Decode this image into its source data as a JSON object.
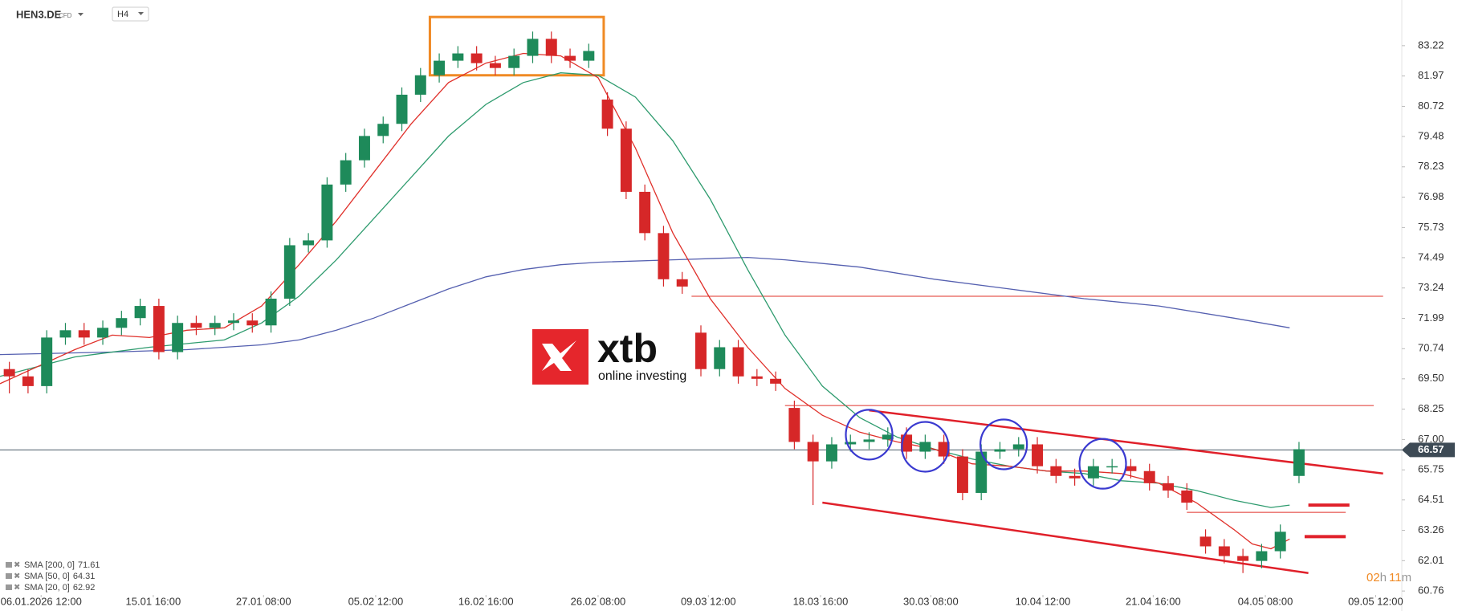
{
  "chart_data": {
    "type": "candlestick",
    "symbol": "HEN3.DE",
    "instrument": "CFD",
    "timeframe": "H4",
    "up_color": "#1e8a5a",
    "down_color": "#d62728",
    "open": [
      69.9,
      69.6,
      69.2,
      71.2,
      71.5,
      71.2,
      71.6,
      72.0,
      72.5,
      70.6,
      71.8,
      71.6,
      71.8,
      71.9,
      71.7,
      72.8,
      75.0,
      75.2,
      77.5,
      78.5,
      79.5,
      80.0,
      81.2,
      82.0,
      82.6,
      82.9,
      82.5,
      82.3,
      82.8,
      83.5,
      82.8,
      82.6,
      81.0,
      79.8,
      77.2,
      75.5,
      73.6,
      71.4,
      69.9,
      70.8,
      69.6,
      69.5,
      68.3,
      66.9,
      66.1,
      66.8,
      66.9,
      67.0,
      67.2,
      66.5,
      66.9,
      66.3,
      64.8,
      66.5,
      66.6,
      66.8,
      65.9,
      65.5,
      65.4,
      65.9,
      65.9,
      65.7,
      65.2,
      64.9,
      63.0,
      62.6,
      62.2,
      62.0,
      62.4,
      65.5
    ],
    "high": [
      70.2,
      69.9,
      71.5,
      71.8,
      71.8,
      71.9,
      72.3,
      72.8,
      72.8,
      72.1,
      72.1,
      72.1,
      72.2,
      72.2,
      73.1,
      75.3,
      75.5,
      77.8,
      78.8,
      79.8,
      80.3,
      81.5,
      82.3,
      82.9,
      83.2,
      83.2,
      82.8,
      83.1,
      83.8,
      83.8,
      83.1,
      83.3,
      81.3,
      80.1,
      77.5,
      75.8,
      73.9,
      71.7,
      71.1,
      71.1,
      69.9,
      69.8,
      68.6,
      67.2,
      67.1,
      67.2,
      67.3,
      67.5,
      67.5,
      67.2,
      67.2,
      66.6,
      66.8,
      66.9,
      67.1,
      67.1,
      66.2,
      65.8,
      66.2,
      66.2,
      66.2,
      66.0,
      65.5,
      65.2,
      63.3,
      62.9,
      62.5,
      62.7,
      63.5,
      66.9
    ],
    "low": [
      68.9,
      68.9,
      68.9,
      70.9,
      70.9,
      70.9,
      71.3,
      71.7,
      70.3,
      70.3,
      71.3,
      71.3,
      71.5,
      71.4,
      71.4,
      72.5,
      74.7,
      74.9,
      77.2,
      78.2,
      79.2,
      79.7,
      80.9,
      81.7,
      82.3,
      82.2,
      82.0,
      82.0,
      82.5,
      82.5,
      82.3,
      82.3,
      79.5,
      76.9,
      75.2,
      73.3,
      73.0,
      69.6,
      69.6,
      69.3,
      69.2,
      69.0,
      66.6,
      64.3,
      65.8,
      66.5,
      66.6,
      66.7,
      66.2,
      66.2,
      66.0,
      64.5,
      64.5,
      66.2,
      66.3,
      65.6,
      65.2,
      65.1,
      65.1,
      65.6,
      65.4,
      64.9,
      64.6,
      64.1,
      62.3,
      61.9,
      61.5,
      61.7,
      62.1,
      65.2
    ],
    "close": [
      69.6,
      69.2,
      71.2,
      71.5,
      71.2,
      71.6,
      72.0,
      72.5,
      70.6,
      71.8,
      71.6,
      71.8,
      71.9,
      71.7,
      72.8,
      75.0,
      75.2,
      77.5,
      78.5,
      79.5,
      80.0,
      81.2,
      82.0,
      82.6,
      82.9,
      82.5,
      82.3,
      82.8,
      83.5,
      82.8,
      82.6,
      83.0,
      79.8,
      77.2,
      75.5,
      73.6,
      73.3,
      69.9,
      70.8,
      69.6,
      69.5,
      69.3,
      66.9,
      66.1,
      66.8,
      66.9,
      67.0,
      67.2,
      66.5,
      66.9,
      66.3,
      64.8,
      66.5,
      66.6,
      66.8,
      65.9,
      65.5,
      65.4,
      65.9,
      65.9,
      65.7,
      65.2,
      64.9,
      64.4,
      62.6,
      62.2,
      62.0,
      62.4,
      63.2,
      66.6
    ],
    "series": [
      {
        "name": "SMA [200, 0]",
        "last_value": 71.61,
        "color": "#5560b0",
        "x": [
          0,
          6,
          10,
          14,
          16,
          18,
          20,
          22,
          24,
          26,
          28,
          30,
          32,
          36,
          40,
          42,
          46,
          50,
          54,
          58,
          62,
          66,
          69
        ],
        "values": [
          70.5,
          70.6,
          70.7,
          70.9,
          71.1,
          71.5,
          72.0,
          72.6,
          73.2,
          73.7,
          74.0,
          74.2,
          74.3,
          74.4,
          74.5,
          74.4,
          74.1,
          73.6,
          73.2,
          72.8,
          72.5,
          72.0,
          71.6
        ]
      },
      {
        "name": "SMA [50, 0]",
        "last_value": 64.31,
        "color": "#2e9b6e",
        "x": [
          0,
          4,
          8,
          12,
          14,
          16,
          18,
          20,
          22,
          24,
          26,
          28,
          30,
          32,
          34,
          36,
          38,
          40,
          42,
          44,
          46,
          48,
          50,
          52,
          54,
          56,
          58,
          60,
          62,
          64,
          66,
          68,
          69
        ],
        "values": [
          69.6,
          70.4,
          70.8,
          71.1,
          71.8,
          72.9,
          74.4,
          76.1,
          77.8,
          79.5,
          80.8,
          81.7,
          82.1,
          82.0,
          81.1,
          79.3,
          76.9,
          74.0,
          71.3,
          69.2,
          67.9,
          67.1,
          66.6,
          66.2,
          65.9,
          65.7,
          65.6,
          65.3,
          65.2,
          64.9,
          64.5,
          64.2,
          64.3
        ]
      },
      {
        "name": "SMA [20, 0]",
        "last_value": 62.92,
        "color": "#e0302a",
        "x": [
          0,
          2,
          4,
          6,
          8,
          10,
          12,
          14,
          16,
          18,
          20,
          22,
          24,
          26,
          28,
          30,
          32,
          34,
          36,
          38,
          40,
          42,
          44,
          46,
          48,
          50,
          52,
          54,
          56,
          58,
          60,
          62,
          64,
          66,
          67,
          68,
          69
        ],
        "values": [
          69.3,
          70.0,
          70.7,
          71.3,
          71.2,
          71.5,
          71.6,
          72.5,
          74.2,
          76.0,
          78.0,
          80.0,
          81.7,
          82.5,
          82.9,
          82.8,
          81.9,
          79.0,
          75.5,
          72.8,
          70.8,
          69.1,
          68.0,
          67.3,
          66.9,
          66.6,
          66.0,
          65.9,
          65.7,
          65.7,
          65.6,
          65.2,
          64.4,
          63.3,
          62.7,
          62.5,
          62.9
        ]
      }
    ],
    "last_price": 66.57,
    "ylim": [
      60.5,
      85.1
    ],
    "yticks": [
      83.22,
      81.97,
      80.72,
      79.48,
      78.23,
      76.98,
      75.73,
      74.49,
      73.24,
      71.99,
      70.74,
      {
        "value": 69.5,
        "label": "69.50"
      },
      68.25,
      {
        "value": 67,
        "label": "67.00"
      },
      65.75,
      64.51,
      63.26,
      62.01,
      60.76
    ],
    "xlim": [
      0,
      75
    ],
    "xticks": [
      {
        "value": 2.2,
        "label": "06.01.2026 12:00"
      },
      {
        "value": 8.2,
        "label": "15.01 16:00"
      },
      {
        "value": 14.1,
        "label": "27.01 08:00"
      },
      {
        "value": 20.1,
        "label": "05.02 12:00"
      },
      {
        "value": 26.0,
        "label": "16.02 16:00"
      },
      {
        "value": 32.0,
        "label": "26.02 08:00"
      },
      {
        "value": 37.9,
        "label": "09.03 12:00"
      },
      {
        "value": 43.9,
        "label": "18.03 16:00"
      },
      {
        "value": 49.8,
        "label": "30.03 08:00"
      },
      {
        "value": 55.8,
        "label": "10.04 12:00"
      },
      {
        "value": 61.7,
        "label": "21.04 16:00"
      },
      {
        "value": 67.7,
        "label": "04.05 08:00"
      },
      {
        "value": 73.6,
        "label": "09.05 12:00"
      }
    ],
    "lines": [
      {
        "x": [
          37,
          74
        ],
        "y": [
          72.9,
          72.9
        ],
        "color": "#e0302a",
        "width": 1
      },
      {
        "x": [
          42,
          73.5
        ],
        "y": [
          68.4,
          68.4
        ],
        "color": "#e0302a",
        "width": 1
      },
      {
        "x": [
          63.5,
          72
        ],
        "y": [
          64.0,
          64.0
        ],
        "color": "#e0302a",
        "width": 1
      },
      {
        "x": [
          46.5,
          74
        ],
        "y": [
          68.2,
          65.6
        ],
        "color": "#e0202a",
        "width": 2.5
      },
      {
        "x": [
          44,
          70
        ],
        "y": [
          64.4,
          61.5
        ],
        "color": "#e0202a",
        "width": 2.5
      },
      {
        "x": [
          70,
          72.2
        ],
        "y": [
          64.3,
          64.3
        ],
        "color": "#e0202a",
        "width": 4
      },
      {
        "x": [
          69.8,
          72
        ],
        "y": [
          63.0,
          63.0
        ],
        "color": "#e0202a",
        "width": 4
      }
    ],
    "boxes": [
      {
        "x": [
          23,
          32.3
        ],
        "y": [
          82.0,
          84.4
        ],
        "color": "#f08a24"
      }
    ],
    "circles": [
      {
        "x": 46.5,
        "y": 67.2,
        "color": "#3a3ad0"
      },
      {
        "x": 49.5,
        "y": 66.7,
        "color": "#3a3ad0"
      },
      {
        "x": 53.7,
        "y": 66.8,
        "color": "#3a3ad0"
      },
      {
        "x": 59,
        "y": 66.0,
        "color": "#3a3ad0"
      }
    ],
    "countdown": {
      "hours": "02",
      "h": "h",
      "minutes": "11",
      "m": "m"
    },
    "logo": {
      "brand": "xtb",
      "tagline": "online investing"
    }
  }
}
